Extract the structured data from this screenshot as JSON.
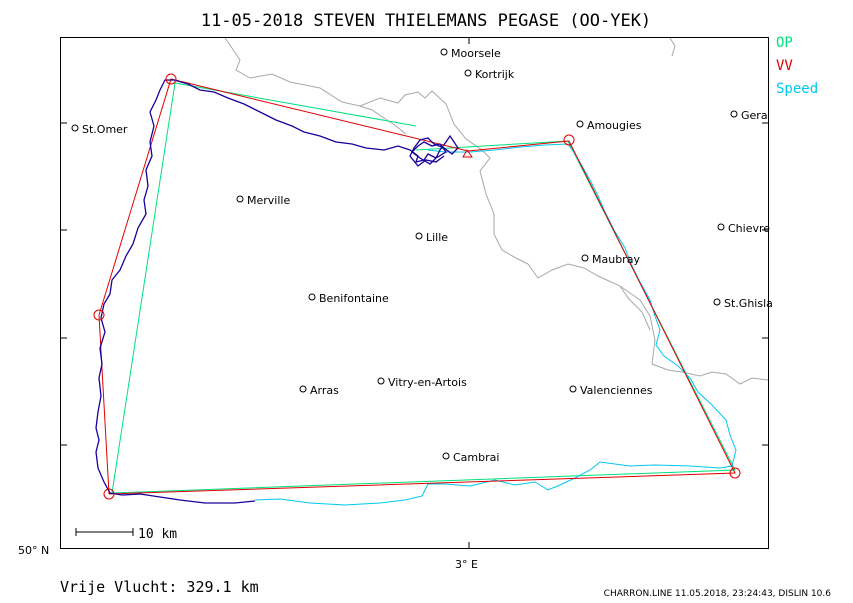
{
  "title": "11-05-2018    STEVEN THIELEMANS    PEGASE (OO-YEK)",
  "legend": [
    {
      "label": "OP",
      "color": "#00e080"
    },
    {
      "label": "VV",
      "color": "#e00000"
    },
    {
      "label": "Speed",
      "color": "#00c8f0"
    }
  ],
  "places": [
    {
      "name": "Moorsele"
    },
    {
      "name": "Kortrijk"
    },
    {
      "name": "St.Omer"
    },
    {
      "name": "Amougies"
    },
    {
      "name": "Gera"
    },
    {
      "name": "Merville"
    },
    {
      "name": "Lille"
    },
    {
      "name": "Chievre"
    },
    {
      "name": "Maubray"
    },
    {
      "name": "Benifontaine"
    },
    {
      "name": "St.Ghisla"
    },
    {
      "name": "Vitry-en-Artois"
    },
    {
      "name": "Arras"
    },
    {
      "name": "Valenciennes"
    },
    {
      "name": "Cambrai"
    }
  ],
  "scale_label": "10  km",
  "lat_label": "50° N",
  "lon_label": "3° E",
  "distance_label": "Vrije Vlucht:  329.1 km",
  "footer": "CHARRON.LINE 11.05.2018, 23:24:43, DISLIN 10.6",
  "colors": {
    "frame": "#000000",
    "border": "#a8a8a8",
    "track": "#1a0099"
  }
}
